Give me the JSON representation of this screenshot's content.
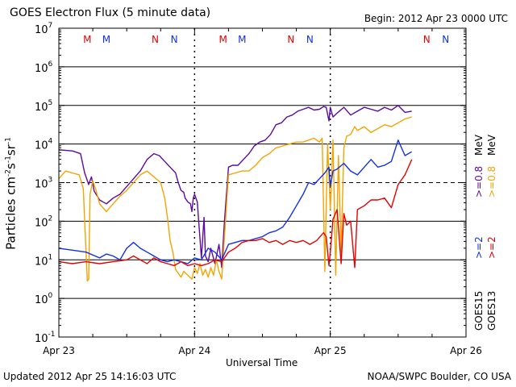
{
  "header": {
    "title": "GOES Electron Flux (5 minute data)",
    "begin": "Begin: 2012 Apr 23 0000 UTC"
  },
  "footer": {
    "updated": "Updated 2012 Apr 25 14:16:03 UTC",
    "source": "NOAA/SWPC Boulder, CO USA"
  },
  "colors": {
    "goes15_high": "#5b0a9e",
    "goes13_high": "#f5a300",
    "goes15_low": "#1030e8",
    "goes13_low": "#e60000",
    "grid": "#000000"
  },
  "chart_data": {
    "type": "line",
    "title": "GOES Electron Flux (5 minute data)",
    "xlabel": "Universal Time",
    "ylabel": "Particles cm⁻²s⁻¹sr⁻¹",
    "ylabel_parts": [
      "Particles cm",
      "-2",
      "s",
      "-1",
      "sr",
      "-1"
    ],
    "yscale": "log",
    "ylim_exp": [
      -1,
      7
    ],
    "yticks": [
      {
        "base": "10",
        "exp": "7"
      },
      {
        "base": "10",
        "exp": "6"
      },
      {
        "base": "10",
        "exp": "5"
      },
      {
        "base": "10",
        "exp": "4"
      },
      {
        "base": "10",
        "exp": "3"
      },
      {
        "base": "10",
        "exp": "2"
      },
      {
        "base": "10",
        "exp": "1"
      },
      {
        "base": "10",
        "exp": "0"
      },
      {
        "base": "10",
        "exp": "-1"
      }
    ],
    "dashed_threshold_exp": 3,
    "xlim_days": [
      0,
      3
    ],
    "xticks": [
      {
        "day": 0,
        "label": "Apr 23"
      },
      {
        "day": 1,
        "label": "Apr 24"
      },
      {
        "day": 2,
        "label": "Apr 25"
      },
      {
        "day": 3,
        "label": "Apr 26"
      }
    ],
    "markers": [
      {
        "day": 0.21,
        "label": "M",
        "color": "#e60000"
      },
      {
        "day": 0.35,
        "label": "M",
        "color": "#1030e8"
      },
      {
        "day": 0.71,
        "label": "N",
        "color": "#e60000"
      },
      {
        "day": 0.85,
        "label": "N",
        "color": "#1030e8"
      },
      {
        "day": 1.21,
        "label": "M",
        "color": "#e60000"
      },
      {
        "day": 1.35,
        "label": "M",
        "color": "#1030e8"
      },
      {
        "day": 1.71,
        "label": "N",
        "color": "#e60000"
      },
      {
        "day": 1.85,
        "label": "N",
        "color": "#1030e8"
      },
      {
        "day": 2.71,
        "label": "N",
        "color": "#e60000"
      },
      {
        "day": 2.85,
        "label": "N",
        "color": "#1030e8"
      }
    ],
    "legend": {
      "placement": "right",
      "goes15_label": "GOES15",
      "goes13_label": "GOES13",
      "goes15_low": ">=2",
      "goes13_low": ">=2",
      "goes15_high": ">=0.8",
      "goes13_high": ">=0.8",
      "unit": "MeV"
    },
    "series": [
      {
        "name": "GOES15 >=0.8 MeV",
        "color": "#5b0a9e",
        "x": [
          0.0,
          0.1,
          0.16,
          0.19,
          0.22,
          0.24,
          0.26,
          0.3,
          0.35,
          0.4,
          0.45,
          0.5,
          0.55,
          0.6,
          0.65,
          0.7,
          0.74,
          0.78,
          0.82,
          0.86,
          0.88,
          0.9,
          0.92,
          0.93,
          0.95,
          0.97,
          0.98,
          0.99,
          1.0,
          1.02,
          1.05,
          1.07,
          1.08,
          1.1,
          1.12,
          1.15,
          1.18,
          1.2,
          1.22,
          1.25,
          1.28,
          1.32,
          1.36,
          1.4,
          1.44,
          1.48,
          1.52,
          1.56,
          1.6,
          1.64,
          1.68,
          1.72,
          1.76,
          1.8,
          1.84,
          1.88,
          1.92,
          1.95,
          1.97,
          1.99,
          2.0,
          2.02,
          2.05,
          2.1,
          2.15,
          2.2,
          2.25,
          2.3,
          2.35,
          2.4,
          2.45,
          2.5,
          2.55,
          2.6
        ],
        "y": [
          3.85,
          3.82,
          3.75,
          3.25,
          2.95,
          3.15,
          2.78,
          2.55,
          2.45,
          2.6,
          2.7,
          2.9,
          3.1,
          3.3,
          3.6,
          3.75,
          3.7,
          3.55,
          3.4,
          3.25,
          3.0,
          2.8,
          2.75,
          2.6,
          2.5,
          2.45,
          2.25,
          2.6,
          2.7,
          2.5,
          1.05,
          2.1,
          1.1,
          0.95,
          1.3,
          0.9,
          1.4,
          0.8,
          2.0,
          3.4,
          3.45,
          3.45,
          3.6,
          3.75,
          3.95,
          4.05,
          4.1,
          4.25,
          4.5,
          4.55,
          4.7,
          4.75,
          4.85,
          4.9,
          4.95,
          4.88,
          4.9,
          4.97,
          4.95,
          4.6,
          4.95,
          4.7,
          4.8,
          4.95,
          4.75,
          4.85,
          4.95,
          4.9,
          4.85,
          4.95,
          4.88,
          5.0,
          4.82,
          4.85
        ]
      },
      {
        "name": "GOES13 >=0.8 MeV",
        "color": "#f5a300",
        "x": [
          0.0,
          0.05,
          0.1,
          0.15,
          0.18,
          0.2,
          0.21,
          0.22,
          0.23,
          0.25,
          0.27,
          0.3,
          0.35,
          0.4,
          0.45,
          0.5,
          0.55,
          0.6,
          0.65,
          0.7,
          0.75,
          0.78,
          0.8,
          0.82,
          0.84,
          0.86,
          0.88,
          0.9,
          0.92,
          0.95,
          0.98,
          1.0,
          1.02,
          1.04,
          1.06,
          1.08,
          1.1,
          1.12,
          1.14,
          1.16,
          1.18,
          1.2,
          1.25,
          1.3,
          1.35,
          1.4,
          1.45,
          1.5,
          1.55,
          1.6,
          1.65,
          1.7,
          1.75,
          1.8,
          1.84,
          1.88,
          1.92,
          1.94,
          1.96,
          1.98,
          2.0,
          2.02,
          2.04,
          2.06,
          2.08,
          2.1,
          2.12,
          2.15,
          2.18,
          2.2,
          2.25,
          2.3,
          2.35,
          2.4,
          2.45,
          2.5,
          2.55,
          2.6
        ],
        "y": [
          3.1,
          3.3,
          3.25,
          3.2,
          2.85,
          1.2,
          0.45,
          0.5,
          2.7,
          3.05,
          2.85,
          2.45,
          2.25,
          2.45,
          2.65,
          2.8,
          3.0,
          3.2,
          3.3,
          3.15,
          3.0,
          2.6,
          2.1,
          1.5,
          1.2,
          0.75,
          0.65,
          0.55,
          0.7,
          0.6,
          0.5,
          0.8,
          0.65,
          0.9,
          0.6,
          0.75,
          0.55,
          0.8,
          0.6,
          1.0,
          0.7,
          0.5,
          3.2,
          3.25,
          3.3,
          3.3,
          3.45,
          3.65,
          3.75,
          3.9,
          3.95,
          4.0,
          4.05,
          4.05,
          4.1,
          4.15,
          4.05,
          4.15,
          0.7,
          4.0,
          2.3,
          4.1,
          0.6,
          3.7,
          1.2,
          3.9,
          4.2,
          4.25,
          4.45,
          4.35,
          4.45,
          4.3,
          4.4,
          4.5,
          4.45,
          4.55,
          4.65,
          4.7
        ]
      },
      {
        "name": "GOES15 >=2 MeV",
        "color": "#1030e8",
        "x": [
          0.0,
          0.1,
          0.2,
          0.3,
          0.35,
          0.4,
          0.45,
          0.5,
          0.55,
          0.6,
          0.65,
          0.7,
          0.75,
          0.8,
          0.85,
          0.9,
          0.95,
          1.0,
          1.05,
          1.1,
          1.15,
          1.2,
          1.25,
          1.3,
          1.35,
          1.4,
          1.45,
          1.5,
          1.55,
          1.6,
          1.65,
          1.7,
          1.75,
          1.8,
          1.84,
          1.88,
          1.92,
          1.96,
          1.99,
          2.0,
          2.02,
          2.05,
          2.1,
          2.15,
          2.2,
          2.25,
          2.3,
          2.35,
          2.4,
          2.45,
          2.5,
          2.55,
          2.6
        ],
        "y": [
          1.3,
          1.25,
          1.2,
          1.05,
          1.15,
          1.1,
          1.0,
          1.3,
          1.45,
          1.3,
          1.2,
          1.1,
          1.0,
          0.95,
          1.0,
          0.95,
          0.9,
          1.05,
          1.0,
          1.3,
          1.2,
          1.0,
          1.4,
          1.45,
          1.5,
          1.5,
          1.55,
          1.6,
          1.7,
          1.75,
          1.85,
          2.1,
          2.4,
          2.7,
          3.0,
          2.95,
          3.1,
          3.25,
          3.4,
          2.9,
          3.3,
          3.35,
          3.5,
          3.3,
          3.2,
          3.4,
          3.6,
          3.4,
          3.45,
          3.55,
          4.1,
          3.7,
          3.8
        ]
      },
      {
        "name": "GOES13 >=2 MeV",
        "color": "#e60000",
        "x": [
          0.0,
          0.1,
          0.2,
          0.3,
          0.4,
          0.5,
          0.55,
          0.6,
          0.65,
          0.7,
          0.75,
          0.8,
          0.85,
          0.9,
          0.95,
          1.0,
          1.05,
          1.1,
          1.15,
          1.2,
          1.25,
          1.3,
          1.35,
          1.4,
          1.45,
          1.5,
          1.55,
          1.6,
          1.65,
          1.7,
          1.75,
          1.8,
          1.85,
          1.9,
          1.95,
          1.97,
          1.99,
          2.0,
          2.02,
          2.05,
          2.08,
          2.1,
          2.12,
          2.15,
          2.18,
          2.2,
          2.25,
          2.3,
          2.35,
          2.4,
          2.45,
          2.5,
          2.55,
          2.6
        ],
        "y": [
          0.95,
          0.9,
          0.95,
          0.9,
          0.95,
          1.0,
          1.1,
          1.0,
          0.9,
          1.05,
          0.95,
          0.9,
          0.85,
          0.95,
          0.85,
          0.9,
          0.85,
          0.9,
          1.0,
          0.95,
          1.2,
          1.3,
          1.45,
          1.5,
          1.5,
          1.55,
          1.45,
          1.5,
          1.4,
          1.5,
          1.45,
          1.5,
          1.4,
          1.5,
          1.7,
          1.6,
          0.85,
          1.2,
          2.05,
          2.3,
          0.9,
          2.2,
          1.9,
          2.0,
          0.8,
          2.3,
          2.4,
          2.55,
          2.55,
          2.6,
          2.35,
          2.95,
          3.2,
          3.6
        ]
      }
    ]
  }
}
